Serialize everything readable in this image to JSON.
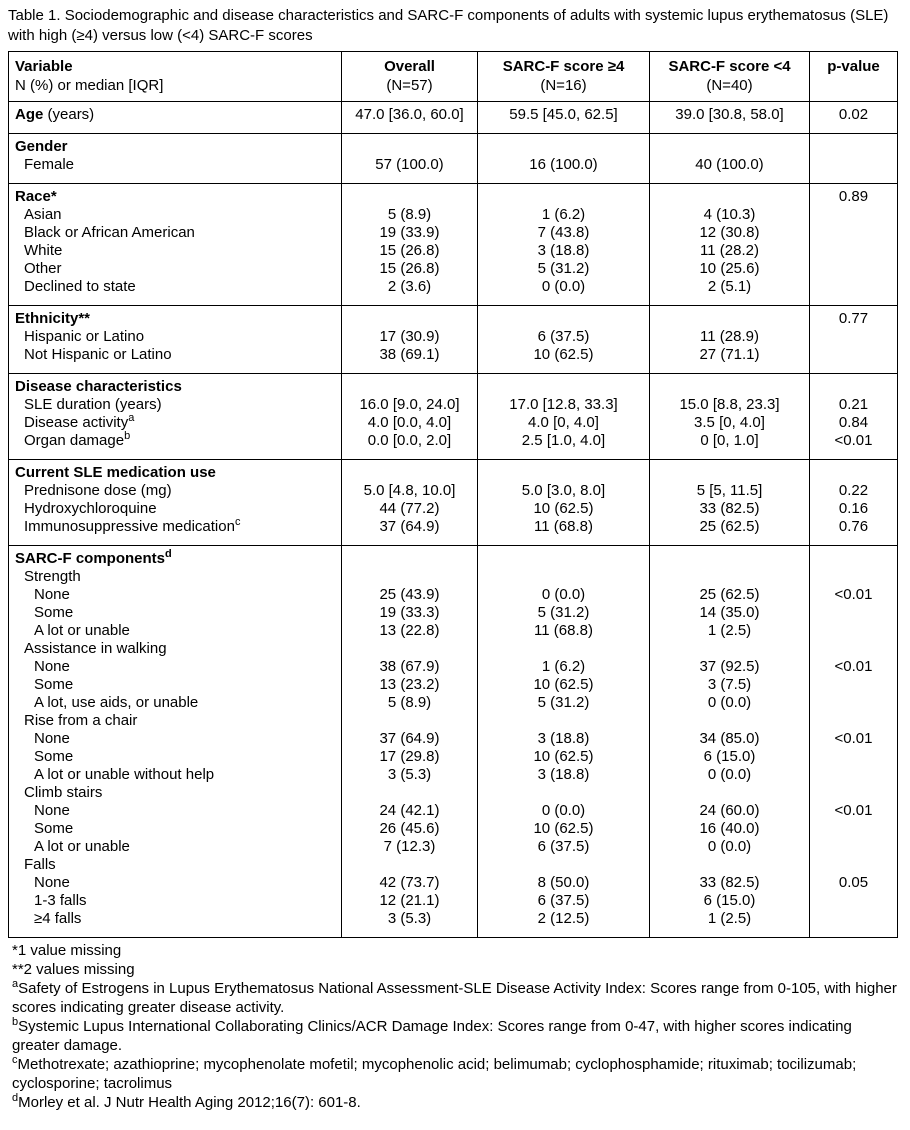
{
  "title": "Table 1. Sociodemographic and disease characteristics and SARC-F components of adults with systemic lupus erythematosus (SLE) with high (≥4) versus low (<4) SARC-F scores",
  "table": {
    "header": {
      "col1_line1": "Variable",
      "col1_line2": "N (%) or median [IQR]",
      "cols": [
        {
          "line1": "Overall",
          "line2": "(N=57)"
        },
        {
          "line1": "SARC-F score ≥4",
          "line2": "(N=16)"
        },
        {
          "line1": "SARC-F score <4",
          "line2": "(N=40)"
        },
        {
          "line1": "p-value",
          "line2": ""
        }
      ]
    },
    "sections": [
      {
        "rows": [
          {
            "label": "Age",
            "suffix": " (years)",
            "sup": "",
            "bold": true,
            "indent": 0,
            "values": [
              "47.0 [36.0, 60.0]",
              "59.5 [45.0, 62.5]",
              "39.0 [30.8, 58.0]",
              "0.02"
            ]
          }
        ]
      },
      {
        "rows": [
          {
            "label": "Gender",
            "suffix": "",
            "sup": "",
            "bold": true,
            "indent": 0,
            "values": [
              "",
              "",
              "",
              ""
            ]
          },
          {
            "label": "Female",
            "suffix": "",
            "sup": "",
            "bold": false,
            "indent": 1,
            "values": [
              "57 (100.0)",
              "16 (100.0)",
              "40 (100.0)",
              ""
            ]
          }
        ]
      },
      {
        "rows": [
          {
            "label": "Race*",
            "suffix": "",
            "sup": "",
            "bold": true,
            "indent": 0,
            "values": [
              "",
              "",
              "",
              "0.89"
            ]
          },
          {
            "label": "Asian",
            "suffix": "",
            "sup": "",
            "bold": false,
            "indent": 1,
            "values": [
              "5 (8.9)",
              "1 (6.2)",
              "4 (10.3)",
              ""
            ]
          },
          {
            "label": "Black or African American",
            "suffix": "",
            "sup": "",
            "bold": false,
            "indent": 1,
            "values": [
              "19 (33.9)",
              "7 (43.8)",
              "12 (30.8)",
              ""
            ]
          },
          {
            "label": "White",
            "suffix": "",
            "sup": "",
            "bold": false,
            "indent": 1,
            "values": [
              "15 (26.8)",
              "3 (18.8)",
              "11 (28.2)",
              ""
            ]
          },
          {
            "label": "Other",
            "suffix": "",
            "sup": "",
            "bold": false,
            "indent": 1,
            "values": [
              "15 (26.8)",
              "5 (31.2)",
              "10 (25.6)",
              ""
            ]
          },
          {
            "label": "Declined to state",
            "suffix": "",
            "sup": "",
            "bold": false,
            "indent": 1,
            "values": [
              "2 (3.6)",
              "0 (0.0)",
              "2 (5.1)",
              ""
            ]
          }
        ]
      },
      {
        "rows": [
          {
            "label": "Ethnicity**",
            "suffix": "",
            "sup": "",
            "bold": true,
            "indent": 0,
            "values": [
              "",
              "",
              "",
              "0.77"
            ]
          },
          {
            "label": "Hispanic or Latino",
            "suffix": "",
            "sup": "",
            "bold": false,
            "indent": 1,
            "values": [
              "17 (30.9)",
              "6 (37.5)",
              "11 (28.9)",
              ""
            ]
          },
          {
            "label": "Not Hispanic or Latino",
            "suffix": "",
            "sup": "",
            "bold": false,
            "indent": 1,
            "values": [
              "38 (69.1)",
              "10 (62.5)",
              "27 (71.1)",
              ""
            ]
          }
        ]
      },
      {
        "rows": [
          {
            "label": "Disease characteristics",
            "suffix": "",
            "sup": "",
            "bold": true,
            "indent": 0,
            "values": [
              "",
              "",
              "",
              ""
            ]
          },
          {
            "label": "SLE duration (years)",
            "suffix": "",
            "sup": "",
            "bold": false,
            "indent": 1,
            "values": [
              "16.0 [9.0, 24.0]",
              "17.0 [12.8, 33.3]",
              "15.0 [8.8, 23.3]",
              "0.21"
            ]
          },
          {
            "label": "Disease activity",
            "suffix": "",
            "sup": "a",
            "bold": false,
            "indent": 1,
            "values": [
              "4.0 [0.0, 4.0]",
              "4.0 [0, 4.0]",
              "3.5 [0, 4.0]",
              "0.84"
            ]
          },
          {
            "label": "Organ damage",
            "suffix": "",
            "sup": "b",
            "bold": false,
            "indent": 1,
            "values": [
              "0.0 [0.0, 2.0]",
              "2.5 [1.0, 4.0]",
              "0 [0, 1.0]",
              "<0.01"
            ]
          }
        ]
      },
      {
        "rows": [
          {
            "label": "Current SLE medication use",
            "suffix": "",
            "sup": "",
            "bold": true,
            "indent": 0,
            "values": [
              "",
              "",
              "",
              ""
            ]
          },
          {
            "label": "Prednisone dose (mg)",
            "suffix": "",
            "sup": "",
            "bold": false,
            "indent": 1,
            "values": [
              "5.0 [4.8, 10.0]",
              "5.0 [3.0, 8.0]",
              "5 [5, 11.5]",
              "0.22"
            ]
          },
          {
            "label": "Hydroxychloroquine",
            "suffix": "",
            "sup": "",
            "bold": false,
            "indent": 1,
            "values": [
              "44 (77.2)",
              "10 (62.5)",
              "33 (82.5)",
              "0.16"
            ]
          },
          {
            "label": "Immunosuppressive medication",
            "suffix": "",
            "sup": "c",
            "bold": false,
            "indent": 1,
            "values": [
              "37 (64.9)",
              "11 (68.8)",
              "25 (62.5)",
              "0.76"
            ]
          }
        ]
      },
      {
        "rows": [
          {
            "label": "SARC-F components",
            "suffix": "",
            "sup": "d",
            "bold": true,
            "indent": 0,
            "values": [
              "",
              "",
              "",
              ""
            ]
          },
          {
            "label": "Strength",
            "suffix": "",
            "sup": "",
            "bold": false,
            "indent": 1,
            "values": [
              "",
              "",
              "",
              ""
            ]
          },
          {
            "label": "None",
            "suffix": "",
            "sup": "",
            "bold": false,
            "indent": 2,
            "values": [
              "25 (43.9)",
              "0 (0.0)",
              "25 (62.5)",
              "<0.01"
            ]
          },
          {
            "label": "Some",
            "suffix": "",
            "sup": "",
            "bold": false,
            "indent": 2,
            "values": [
              "19 (33.3)",
              "5 (31.2)",
              "14 (35.0)",
              ""
            ]
          },
          {
            "label": "A lot or unable",
            "suffix": "",
            "sup": "",
            "bold": false,
            "indent": 2,
            "values": [
              "13 (22.8)",
              "11 (68.8)",
              "1 (2.5)",
              ""
            ]
          },
          {
            "label": "Assistance in walking",
            "suffix": "",
            "sup": "",
            "bold": false,
            "indent": 1,
            "values": [
              "",
              "",
              "",
              ""
            ]
          },
          {
            "label": "None",
            "suffix": "",
            "sup": "",
            "bold": false,
            "indent": 2,
            "values": [
              "38 (67.9)",
              "1 (6.2)",
              "37 (92.5)",
              "<0.01"
            ]
          },
          {
            "label": "Some",
            "suffix": "",
            "sup": "",
            "bold": false,
            "indent": 2,
            "values": [
              "13 (23.2)",
              "10 (62.5)",
              "3 (7.5)",
              ""
            ]
          },
          {
            "label": "A lot, use aids, or unable",
            "suffix": "",
            "sup": "",
            "bold": false,
            "indent": 2,
            "values": [
              "5 (8.9)",
              "5 (31.2)",
              "0 (0.0)",
              ""
            ]
          },
          {
            "label": "Rise from a chair",
            "suffix": "",
            "sup": "",
            "bold": false,
            "indent": 1,
            "values": [
              "",
              "",
              "",
              ""
            ]
          },
          {
            "label": "None",
            "suffix": "",
            "sup": "",
            "bold": false,
            "indent": 2,
            "values": [
              "37 (64.9)",
              "3 (18.8)",
              "34 (85.0)",
              "<0.01"
            ]
          },
          {
            "label": "Some",
            "suffix": "",
            "sup": "",
            "bold": false,
            "indent": 2,
            "values": [
              "17 (29.8)",
              "10 (62.5)",
              "6 (15.0)",
              ""
            ]
          },
          {
            "label": "A lot or unable without help",
            "suffix": "",
            "sup": "",
            "bold": false,
            "indent": 2,
            "values": [
              "3 (5.3)",
              "3 (18.8)",
              "0 (0.0)",
              ""
            ]
          },
          {
            "label": "Climb stairs",
            "suffix": "",
            "sup": "",
            "bold": false,
            "indent": 1,
            "values": [
              "",
              "",
              "",
              ""
            ]
          },
          {
            "label": "None",
            "suffix": "",
            "sup": "",
            "bold": false,
            "indent": 2,
            "values": [
              "24 (42.1)",
              "0 (0.0)",
              "24 (60.0)",
              "<0.01"
            ]
          },
          {
            "label": "Some",
            "suffix": "",
            "sup": "",
            "bold": false,
            "indent": 2,
            "values": [
              "26 (45.6)",
              "10 (62.5)",
              "16 (40.0)",
              ""
            ]
          },
          {
            "label": "A lot or unable",
            "suffix": "",
            "sup": "",
            "bold": false,
            "indent": 2,
            "values": [
              "7 (12.3)",
              "6 (37.5)",
              "0 (0.0)",
              ""
            ]
          },
          {
            "label": "Falls",
            "suffix": "",
            "sup": "",
            "bold": false,
            "indent": 1,
            "values": [
              "",
              "",
              "",
              ""
            ]
          },
          {
            "label": "None",
            "suffix": "",
            "sup": "",
            "bold": false,
            "indent": 2,
            "values": [
              "42 (73.7)",
              "8 (50.0)",
              "33 (82.5)",
              "0.05"
            ]
          },
          {
            "label": "1-3 falls",
            "suffix": "",
            "sup": "",
            "bold": false,
            "indent": 2,
            "values": [
              "12 (21.1)",
              "6 (37.5)",
              "6 (15.0)",
              ""
            ]
          },
          {
            "label": "≥4 falls",
            "suffix": "",
            "sup": "",
            "bold": false,
            "indent": 2,
            "values": [
              "3 (5.3)",
              "2 (12.5)",
              "1 (2.5)",
              ""
            ]
          }
        ]
      }
    ]
  },
  "footnotes": [
    {
      "sup": "",
      "text": "*1 value missing"
    },
    {
      "sup": "",
      "text": "**2 values missing"
    },
    {
      "sup": "a",
      "text": "Safety of Estrogens in Lupus Erythematosus National Assessment-SLE Disease Activity Index: Scores range from 0-105, with higher scores indicating greater disease activity."
    },
    {
      "sup": "b",
      "text": "Systemic Lupus International Collaborating Clinics/ACR Damage Index: Scores range from 0-47, with higher scores indicating greater damage."
    },
    {
      "sup": "c",
      "text": "Methotrexate; azathioprine; mycophenolate mofetil; mycophenolic acid; belimumab; cyclophosphamide; rituximab; tocilizumab; cyclosporine; tacrolimus"
    },
    {
      "sup": "d",
      "text": "Morley et al. J Nutr Health Aging 2012;16(7): 601-8."
    }
  ]
}
